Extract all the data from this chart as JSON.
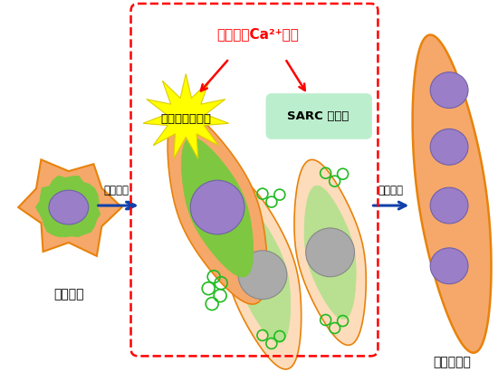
{
  "bg_color": "#ffffff",
  "orange_fill": "#F5A86A",
  "orange_edge": "#E8820A",
  "green_fill": "#7DC840",
  "green_light": "#DDEEBB",
  "green_medium": "#B8E090",
  "purple_fill": "#9B7EC8",
  "purple_edge": "#7060AA",
  "gray_fill": "#AAAAAA",
  "gray_edge": "#888888",
  "red_color": "#FF0000",
  "blue_color": "#1040AA",
  "yellow_star": "#FFFF00",
  "light_orange_fill": "#FDDCBB",
  "title_text": "小胞体内Ca²⁺枯渴",
  "label_er_stress": "小胞体ストレス",
  "label_sarc": "SARC 体形成",
  "label_myoblast": "筋芽細胞",
  "label_myofiber": "筋繊維細胞",
  "label_diff": "分化誘導",
  "label_fusion": "細胞融合"
}
